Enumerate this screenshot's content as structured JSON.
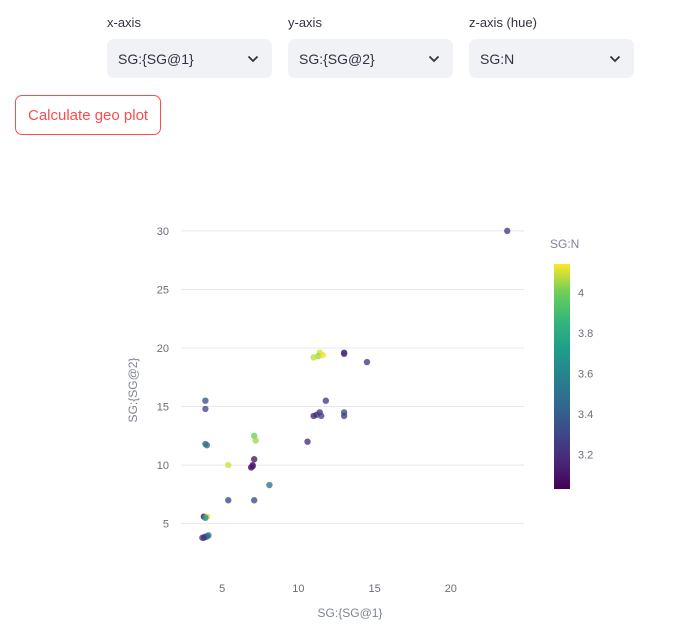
{
  "controls": {
    "x_axis": {
      "label": "x-axis",
      "value": "SG:{SG@1}"
    },
    "y_axis": {
      "label": "y-axis",
      "value": "SG:{SG@2}"
    },
    "z_axis": {
      "label": "z-axis (hue)",
      "value": "SG:N"
    },
    "calculate_button": "Calculate geo plot"
  },
  "chart_data": {
    "type": "scatter",
    "xlabel": "SG:{SG@1}",
    "ylabel": "SG:{SG@2}",
    "xlim": [
      2.3,
      24.8
    ],
    "ylim": [
      1.3,
      31.1
    ],
    "xticks": [
      5,
      10,
      15,
      20
    ],
    "yticks": [
      5,
      10,
      15,
      20,
      25,
      30
    ],
    "grid": true,
    "colorbar": {
      "title": "SG:N",
      "colorscale": "viridis",
      "range": [
        3.03,
        4.14
      ],
      "ticks": [
        3.2,
        3.4,
        3.6,
        3.8,
        4
      ]
    },
    "points": [
      {
        "x": 23.7,
        "y": 30.0,
        "z": 3.25
      },
      {
        "x": 14.5,
        "y": 18.8,
        "z": 3.25
      },
      {
        "x": 13.0,
        "y": 19.6,
        "z": 3.15
      },
      {
        "x": 13.0,
        "y": 19.5,
        "z": 3.2
      },
      {
        "x": 11.4,
        "y": 19.6,
        "z": 4.1
      },
      {
        "x": 11.3,
        "y": 19.3,
        "z": 4.05
      },
      {
        "x": 11.6,
        "y": 19.4,
        "z": 4.12
      },
      {
        "x": 11.0,
        "y": 19.2,
        "z": 4.08
      },
      {
        "x": 11.8,
        "y": 15.5,
        "z": 3.25
      },
      {
        "x": 11.2,
        "y": 14.3,
        "z": 3.25
      },
      {
        "x": 11.4,
        "y": 14.5,
        "z": 3.2
      },
      {
        "x": 11.5,
        "y": 14.2,
        "z": 3.3
      },
      {
        "x": 11.0,
        "y": 14.2,
        "z": 3.15
      },
      {
        "x": 13.0,
        "y": 14.5,
        "z": 3.3
      },
      {
        "x": 13.0,
        "y": 14.2,
        "z": 3.25
      },
      {
        "x": 10.6,
        "y": 12.0,
        "z": 3.2
      },
      {
        "x": 3.9,
        "y": 15.5,
        "z": 3.35
      },
      {
        "x": 3.9,
        "y": 14.8,
        "z": 3.3
      },
      {
        "x": 3.9,
        "y": 11.8,
        "z": 3.45
      },
      {
        "x": 4.0,
        "y": 11.7,
        "z": 3.5
      },
      {
        "x": 7.1,
        "y": 12.5,
        "z": 4.0
      },
      {
        "x": 7.2,
        "y": 12.1,
        "z": 4.05
      },
      {
        "x": 5.4,
        "y": 10.0,
        "z": 4.1
      },
      {
        "x": 7.1,
        "y": 10.5,
        "z": 3.1
      },
      {
        "x": 6.9,
        "y": 9.8,
        "z": 3.05
      },
      {
        "x": 7.0,
        "y": 9.9,
        "z": 3.1
      },
      {
        "x": 7.0,
        "y": 10.0,
        "z": 3.15
      },
      {
        "x": 8.1,
        "y": 8.3,
        "z": 3.5
      },
      {
        "x": 5.4,
        "y": 7.0,
        "z": 3.3
      },
      {
        "x": 7.1,
        "y": 7.0,
        "z": 3.3
      },
      {
        "x": 3.8,
        "y": 5.6,
        "z": 3.05
      },
      {
        "x": 4.0,
        "y": 5.6,
        "z": 4.1
      },
      {
        "x": 3.9,
        "y": 5.5,
        "z": 3.7
      },
      {
        "x": 3.7,
        "y": 3.8,
        "z": 3.3
      },
      {
        "x": 3.9,
        "y": 3.9,
        "z": 3.4
      },
      {
        "x": 4.0,
        "y": 3.9,
        "z": 3.5
      },
      {
        "x": 3.8,
        "y": 3.8,
        "z": 3.2
      },
      {
        "x": 4.1,
        "y": 4.0,
        "z": 3.45
      }
    ]
  }
}
